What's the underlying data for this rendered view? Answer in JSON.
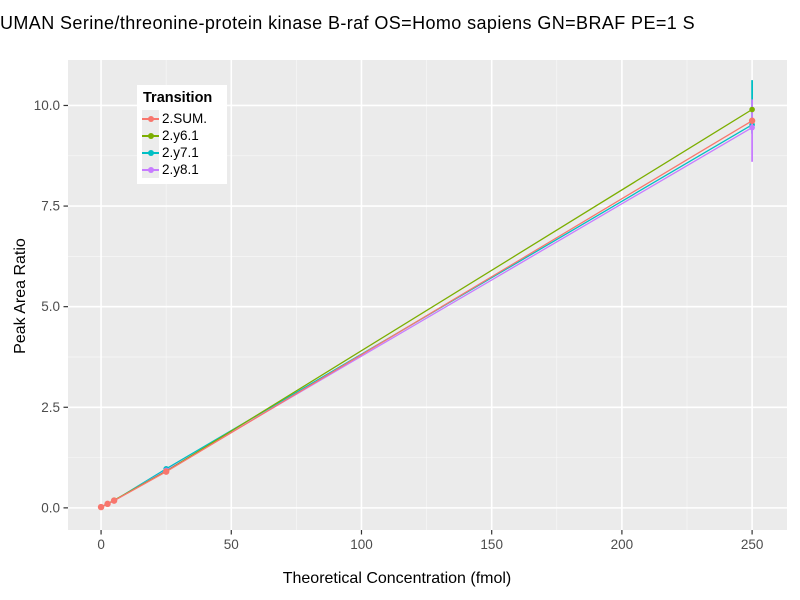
{
  "chart_data": {
    "type": "line",
    "title": "UMAN Serine/threonine-protein kinase B-raf OS=Homo sapiens GN=BRAF PE=1 S",
    "xlabel": "Theoretical Concentration (fmol)",
    "ylabel": "Peak Area Ratio",
    "legend": {
      "title": "Transition",
      "position": "top-left-inside"
    },
    "x_ticks": {
      "values": [
        0,
        50,
        100,
        150,
        200,
        250
      ],
      "labels": [
        "0",
        "50",
        "100",
        "150",
        "200",
        "250"
      ]
    },
    "x_minor": [
      25,
      75,
      125,
      175,
      225
    ],
    "y_ticks": {
      "values": [
        0,
        2.5,
        5,
        7.5,
        10
      ],
      "labels": [
        "0.0",
        "2.5",
        "5.0",
        "7.5",
        "10.0"
      ]
    },
    "y_minor": [
      1.25,
      3.75,
      6.25,
      8.75
    ],
    "x_domain": [
      -12.7,
      263.4
    ],
    "y_domain": [
      -0.55,
      11.13
    ],
    "grid": true,
    "colors": {
      "panel_fill": "#EBEBEB",
      "grid_major": "#FFFFFF",
      "grid_minor": "#F5F5F5",
      "axis_text": "#4D4D4D",
      "tick_mark": "#333333"
    },
    "series": [
      {
        "name": "2.SUM.",
        "color": "#F8766D",
        "x": [
          0,
          2.5,
          5,
          25,
          250
        ],
        "y": [
          0.02,
          0.1,
          0.18,
          0.9,
          9.62
        ],
        "point_radius": 3.2
      },
      {
        "name": "2.y6.1",
        "color": "#7CAE00",
        "x": [
          0,
          2.5,
          5,
          25,
          250
        ],
        "y": [
          0.02,
          0.1,
          0.19,
          0.91,
          9.9
        ],
        "point_radius": 2.8
      },
      {
        "name": "2.y7.1",
        "color": "#00BFC4",
        "x": [
          0,
          2.5,
          5,
          25,
          250
        ],
        "y": [
          0.02,
          0.1,
          0.18,
          0.97,
          9.52
        ],
        "point_radius": 2.8,
        "errorbar": {
          "x": 250,
          "ymin": 9.3,
          "ymax": 10.63
        }
      },
      {
        "name": "2.y8.1",
        "color": "#C77CFF",
        "x": [
          0,
          2.5,
          5,
          25,
          250
        ],
        "y": [
          0.02,
          0.1,
          0.18,
          0.93,
          9.45
        ],
        "point_radius": 2.8,
        "errorbar": {
          "x": 250,
          "ymin": 8.6,
          "ymax": 10.15
        }
      }
    ],
    "draw_order": [
      2,
      3,
      1,
      0
    ]
  }
}
